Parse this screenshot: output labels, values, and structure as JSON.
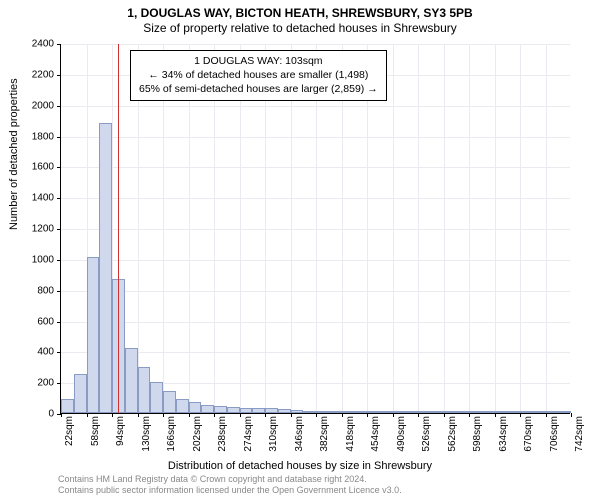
{
  "title": "1, DOUGLAS WAY, BICTON HEATH, SHREWSBURY, SY3 5PB",
  "subtitle": "Size of property relative to detached houses in Shrewsbury",
  "chart": {
    "type": "histogram",
    "ylabel": "Number of detached properties",
    "xlabel": "Distribution of detached houses by size in Shrewsbury",
    "ylim": [
      0,
      2400
    ],
    "ytick_step": 200,
    "x_start": 22,
    "x_step": 36,
    "x_bins": 21,
    "bar_color": "#cfd8ec",
    "bar_border": "#8a9bc4",
    "grid_color": "#eaeaf0",
    "background_color": "#ffffff",
    "marker_value": 103,
    "marker_color": "#d03030",
    "values_per_18": [
      90,
      250,
      1010,
      1880,
      870,
      420,
      300,
      200,
      140,
      90,
      70,
      50,
      45,
      40,
      35,
      30,
      30,
      25,
      20,
      15,
      15,
      12,
      10,
      10,
      10,
      10,
      8,
      8,
      8,
      5,
      5,
      5,
      5,
      4,
      4,
      4,
      3,
      3,
      3,
      2,
      2,
      2
    ],
    "x_tick_labels": [
      "22sqm",
      "58sqm",
      "94sqm",
      "130sqm",
      "166sqm",
      "202sqm",
      "238sqm",
      "274sqm",
      "310sqm",
      "346sqm",
      "382sqm",
      "418sqm",
      "454sqm",
      "490sqm",
      "526sqm",
      "562sqm",
      "598sqm",
      "634sqm",
      "670sqm",
      "706sqm",
      "742sqm"
    ]
  },
  "info_box": {
    "line1": "1 DOUGLAS WAY: 103sqm",
    "line2": "← 34% of detached houses are smaller (1,498)",
    "line3": "65% of semi-detached houses are larger (2,859) →"
  },
  "footer": {
    "line1": "Contains HM Land Registry data © Crown copyright and database right 2024.",
    "line2": "Contains public sector information licensed under the Open Government Licence v3.0."
  }
}
